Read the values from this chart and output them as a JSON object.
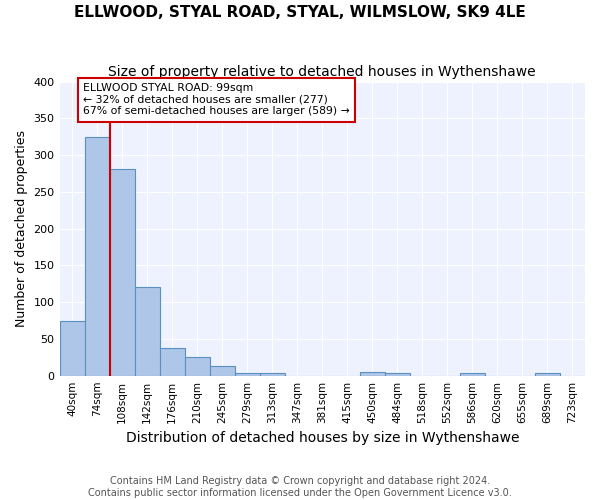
{
  "title": "ELLWOOD, STYAL ROAD, STYAL, WILMSLOW, SK9 4LE",
  "subtitle": "Size of property relative to detached houses in Wythenshawe",
  "xlabel": "Distribution of detached houses by size in Wythenshawe",
  "ylabel": "Number of detached properties",
  "footnote1": "Contains HM Land Registry data © Crown copyright and database right 2024.",
  "footnote2": "Contains public sector information licensed under the Open Government Licence v3.0.",
  "bar_labels": [
    "40sqm",
    "74sqm",
    "108sqm",
    "142sqm",
    "176sqm",
    "210sqm",
    "245sqm",
    "279sqm",
    "313sqm",
    "347sqm",
    "381sqm",
    "415sqm",
    "450sqm",
    "484sqm",
    "518sqm",
    "552sqm",
    "586sqm",
    "620sqm",
    "655sqm",
    "689sqm",
    "723sqm"
  ],
  "bar_values": [
    75,
    325,
    281,
    121,
    38,
    25,
    13,
    4,
    4,
    0,
    0,
    0,
    5,
    4,
    0,
    0,
    4,
    0,
    0,
    3,
    0
  ],
  "bar_color": "#aec6e8",
  "bar_edge_color": "#5a8fc2",
  "annotation_line1": "ELLWOOD STYAL ROAD: 99sqm",
  "annotation_line2": "← 32% of detached houses are smaller (277)",
  "annotation_line3": "67% of semi-detached houses are larger (589) →",
  "vline_x_index": 1.5,
  "vline_color": "#cc0000",
  "annotation_rect_color": "#cc0000",
  "ylim": [
    0,
    400
  ],
  "yticks": [
    0,
    50,
    100,
    150,
    200,
    250,
    300,
    350,
    400
  ],
  "background_color": "#eef2ff",
  "grid_color": "#ffffff",
  "title_fontsize": 11,
  "subtitle_fontsize": 10,
  "xlabel_fontsize": 10,
  "ylabel_fontsize": 9,
  "tick_fontsize": 7.5,
  "footnote_fontsize": 7
}
